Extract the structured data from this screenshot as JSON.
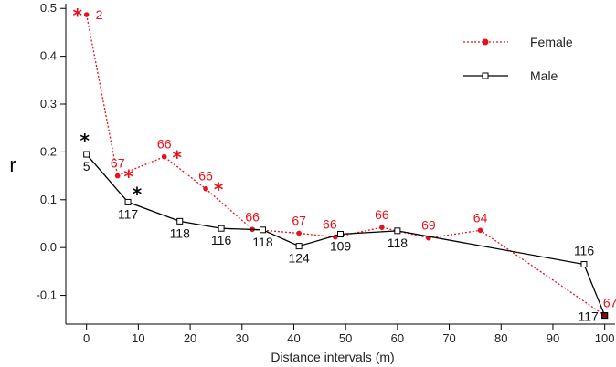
{
  "chart_data": {
    "type": "line",
    "xlabel": "Distance intervals (m)",
    "ylabel": "r",
    "xlim": [
      -4,
      102
    ],
    "ylim": [
      -0.16,
      0.51
    ],
    "xticks": [
      0,
      10,
      20,
      30,
      40,
      50,
      60,
      70,
      80,
      90,
      100
    ],
    "xtick_labels": [
      "0",
      "10",
      "20",
      "30",
      "40",
      "50",
      "60",
      "70",
      "80",
      "90",
      "100"
    ],
    "yticks": [
      -0.1,
      0.0,
      0.1,
      0.2,
      0.3,
      0.4,
      0.5
    ],
    "ytick_labels": [
      "-0.1",
      "0.0",
      "0.1",
      "0.2",
      "0.3",
      "0.4",
      "0.5"
    ],
    "legend_position": "top-right",
    "series": [
      {
        "name": "Female",
        "color": "#e8101a",
        "line_style": "dotted",
        "marker": "filled-circle",
        "points": [
          {
            "x": 0,
            "y": 0.487,
            "label": "2",
            "sig": true
          },
          {
            "x": 6,
            "y": 0.15,
            "label": "67",
            "sig": true
          },
          {
            "x": 15,
            "y": 0.19,
            "label": "66",
            "sig": true
          },
          {
            "x": 23,
            "y": 0.123,
            "label": "66",
            "sig": true
          },
          {
            "x": 32,
            "y": 0.038,
            "label": "66",
            "sig": false
          },
          {
            "x": 41,
            "y": 0.03,
            "label": "67",
            "sig": false
          },
          {
            "x": 48,
            "y": 0.022,
            "label": "66",
            "sig": false
          },
          {
            "x": 57,
            "y": 0.042,
            "label": "66",
            "sig": false
          },
          {
            "x": 66,
            "y": 0.02,
            "label": "69",
            "sig": false
          },
          {
            "x": 76,
            "y": 0.036,
            "label": "64",
            "sig": false
          },
          {
            "x": 100,
            "y": -0.142,
            "label": "67",
            "sig": false
          }
        ]
      },
      {
        "name": "Male",
        "color": "#000000",
        "line_style": "solid",
        "marker": "open-square",
        "points": [
          {
            "x": 0,
            "y": 0.195,
            "label": "5",
            "sig": true
          },
          {
            "x": 8,
            "y": 0.095,
            "label": "117",
            "sig": true
          },
          {
            "x": 18,
            "y": 0.055,
            "label": "118",
            "sig": false
          },
          {
            "x": 26,
            "y": 0.04,
            "label": "116",
            "sig": false
          },
          {
            "x": 34,
            "y": 0.037,
            "label": "118",
            "sig": false
          },
          {
            "x": 41,
            "y": 0.003,
            "label": "124",
            "sig": false
          },
          {
            "x": 49,
            "y": 0.028,
            "label": "109",
            "sig": false
          },
          {
            "x": 60,
            "y": 0.035,
            "label": "118",
            "sig": false
          },
          {
            "x": 96,
            "y": -0.035,
            "label": "116",
            "sig": false
          },
          {
            "x": 100,
            "y": -0.142,
            "label": "117",
            "sig": false
          }
        ]
      }
    ],
    "significance_symbol": "*"
  }
}
